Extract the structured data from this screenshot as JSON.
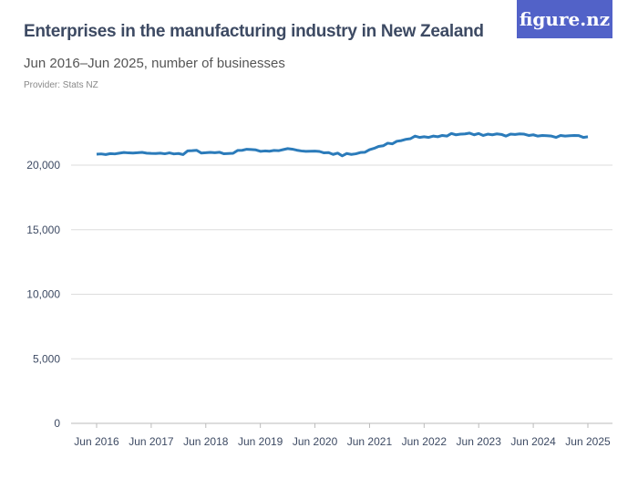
{
  "header": {
    "title": "Enterprises in the manufacturing industry in New Zealand",
    "subtitle": "Jun 2016–Jun 2025, number of businesses",
    "provider": "Provider: Stats NZ",
    "logo": "figure.nz"
  },
  "colors": {
    "line": "#2b7bba",
    "logo_bg": "#5262c8",
    "grid": "#dddddd"
  },
  "chart_data": {
    "type": "line",
    "title": "Enterprises in the manufacturing industry in New Zealand",
    "subtitle": "Jun 2016–Jun 2025, number of businesses",
    "ylim": [
      0,
      22500
    ],
    "yticks": [
      0,
      5000,
      10000,
      15000,
      20000
    ],
    "ytick_labels": [
      "0",
      "5,000",
      "10,000",
      "15,000",
      "20,000"
    ],
    "xtick_labels": [
      "Jun 2016",
      "Jun 2017",
      "Jun 2018",
      "Jun 2019",
      "Jun 2020",
      "Jun 2021",
      "Jun 2022",
      "Jun 2023",
      "Jun 2024",
      "Jun 2025"
    ],
    "x_start": "2016-06",
    "x_end": "2025-06",
    "frequency": "monthly",
    "grid": true,
    "series": [
      {
        "values": [
          20850,
          20870,
          20820,
          20890,
          20870,
          20930,
          20980,
          20950,
          20940,
          20960,
          20990,
          20930,
          20910,
          20900,
          20930,
          20880,
          20950,
          20870,
          20900,
          20820,
          21100,
          21120,
          21150,
          20940,
          20960,
          20990,
          20960,
          21000,
          20880,
          20900,
          20920,
          21140,
          21150,
          21230,
          21210,
          21180,
          21070,
          21100,
          21080,
          21140,
          21120,
          21200,
          21280,
          21240,
          21160,
          21100,
          21070,
          21080,
          21090,
          21060,
          20950,
          20970,
          20830,
          20930,
          20720,
          20900,
          20830,
          20880,
          20980,
          21000,
          21200,
          21300,
          21450,
          21500,
          21700,
          21650,
          21850,
          21900,
          22000,
          22050,
          22250,
          22150,
          22200,
          22150,
          22250,
          22200,
          22300,
          22250,
          22450,
          22350,
          22400,
          22420,
          22480,
          22350,
          22450,
          22300,
          22400,
          22350,
          22420,
          22380,
          22250,
          22400,
          22380,
          22420,
          22400,
          22300,
          22350,
          22250,
          22300,
          22280,
          22250,
          22150,
          22300,
          22250,
          22280,
          22300,
          22290,
          22150,
          22200
        ]
      }
    ]
  }
}
